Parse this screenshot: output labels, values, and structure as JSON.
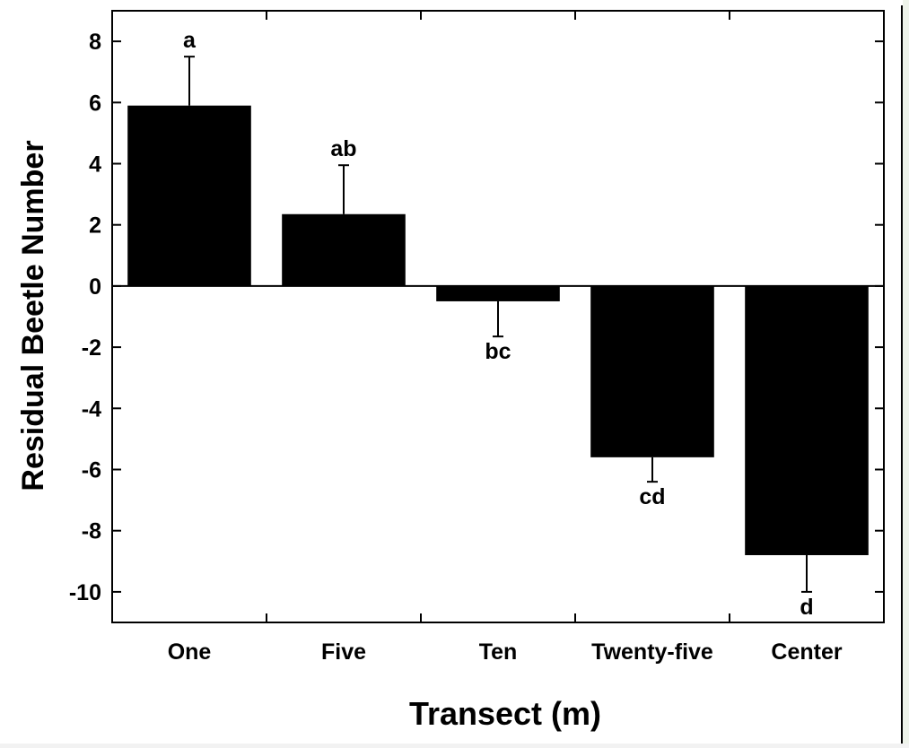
{
  "chart_data": {
    "type": "bar",
    "xlabel": "Transect (m)",
    "ylabel": "Residual Beetle Number",
    "categories": [
      "One",
      "Five",
      "Ten",
      "Twenty-five",
      "Center"
    ],
    "values": [
      5.9,
      2.35,
      -0.5,
      -5.6,
      -8.8
    ],
    "error": [
      1.6,
      1.6,
      1.15,
      0.8,
      1.2
    ],
    "significance_labels": [
      "a",
      "ab",
      "bc",
      "cd",
      "d"
    ],
    "ylim": [
      -11,
      9
    ],
    "yticks": [
      8,
      6,
      4,
      2,
      0,
      -2,
      -4,
      -6,
      -8,
      -10
    ],
    "ytick_labels": [
      "8",
      "6",
      "4",
      "2",
      "0",
      "-2",
      "-4",
      "-6",
      "-8",
      "-10"
    ],
    "grid": false,
    "bar_color": "#000000"
  }
}
